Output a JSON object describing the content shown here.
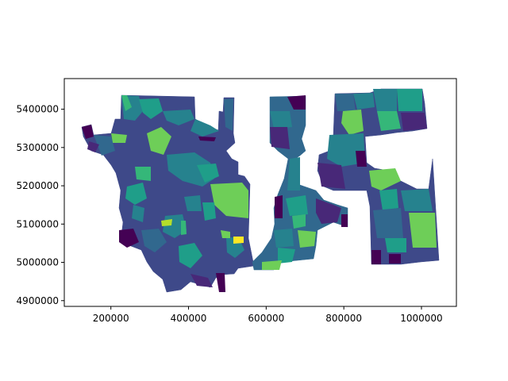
{
  "figure": {
    "type": "choropleth",
    "colormap": "viridis",
    "colors": [
      "#440154",
      "#482878",
      "#3e4989",
      "#31688e",
      "#26828e",
      "#1f9e89",
      "#35b779",
      "#6ece58",
      "#b5de2b",
      "#fde725"
    ],
    "x_axis": {
      "range": [
        80000,
        1090000
      ],
      "ticks": [
        {
          "value": 200000,
          "label": "200000"
        },
        {
          "value": 400000,
          "label": "400000"
        },
        {
          "value": 600000,
          "label": "600000"
        },
        {
          "value": 800000,
          "label": "800000"
        },
        {
          "value": 1000000,
          "label": "1000000"
        }
      ]
    },
    "y_axis": {
      "range": [
        4885000,
        5480000
      ],
      "ticks": [
        {
          "value": 4900000,
          "label": "4900000"
        },
        {
          "value": 5000000,
          "label": "5000000"
        },
        {
          "value": 5100000,
          "label": "5100000"
        },
        {
          "value": 5200000,
          "label": "5200000"
        },
        {
          "value": 5300000,
          "label": "5300000"
        },
        {
          "value": 5400000,
          "label": "5400000"
        }
      ]
    },
    "grid": false,
    "legend": "none"
  }
}
